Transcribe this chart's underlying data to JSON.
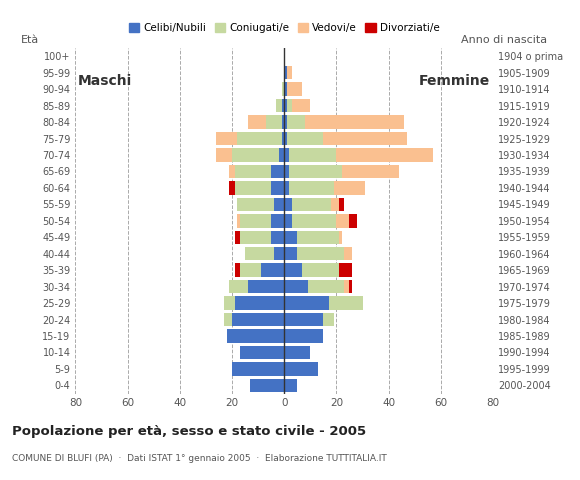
{
  "age_groups": [
    "0-4",
    "5-9",
    "10-14",
    "15-19",
    "20-24",
    "25-29",
    "30-34",
    "35-39",
    "40-44",
    "45-49",
    "50-54",
    "55-59",
    "60-64",
    "65-69",
    "70-74",
    "75-79",
    "80-84",
    "85-89",
    "90-94",
    "95-99",
    "100+"
  ],
  "birth_years": [
    "2000-2004",
    "1995-1999",
    "1990-1994",
    "1985-1989",
    "1980-1984",
    "1975-1979",
    "1970-1974",
    "1965-1969",
    "1960-1964",
    "1955-1959",
    "1950-1954",
    "1945-1949",
    "1940-1944",
    "1935-1939",
    "1930-1934",
    "1925-1929",
    "1920-1924",
    "1915-1919",
    "1910-1914",
    "1905-1909",
    "1904 o prima"
  ],
  "males": {
    "celibe": [
      13,
      20,
      17,
      22,
      20,
      19,
      14,
      9,
      4,
      5,
      5,
      4,
      5,
      5,
      2,
      1,
      1,
      1,
      0,
      0,
      0
    ],
    "coniugato": [
      0,
      0,
      0,
      0,
      3,
      4,
      7,
      8,
      11,
      12,
      12,
      14,
      14,
      14,
      18,
      17,
      6,
      2,
      1,
      0,
      0
    ],
    "vedovo": [
      0,
      0,
      0,
      0,
      0,
      0,
      0,
      0,
      0,
      0,
      1,
      0,
      0,
      2,
      6,
      8,
      7,
      0,
      0,
      0,
      0
    ],
    "divorziato": [
      0,
      0,
      0,
      0,
      0,
      0,
      0,
      2,
      0,
      2,
      0,
      0,
      2,
      0,
      0,
      0,
      0,
      0,
      0,
      0,
      0
    ]
  },
  "females": {
    "celibe": [
      5,
      13,
      10,
      15,
      15,
      17,
      9,
      7,
      5,
      5,
      3,
      3,
      2,
      2,
      2,
      1,
      1,
      1,
      1,
      1,
      0
    ],
    "coniugato": [
      0,
      0,
      0,
      0,
      4,
      13,
      14,
      14,
      18,
      16,
      17,
      15,
      17,
      20,
      18,
      14,
      7,
      2,
      0,
      0,
      0
    ],
    "vedovo": [
      0,
      0,
      0,
      0,
      0,
      0,
      2,
      0,
      3,
      1,
      5,
      3,
      12,
      22,
      37,
      32,
      38,
      7,
      6,
      2,
      0
    ],
    "divorziato": [
      0,
      0,
      0,
      0,
      0,
      0,
      1,
      5,
      0,
      0,
      3,
      2,
      0,
      0,
      0,
      0,
      0,
      0,
      0,
      0,
      0
    ]
  },
  "colors": {
    "celibe": "#4472C4",
    "coniugato": "#C6D9A0",
    "vedovo": "#FAC090",
    "divorziato": "#CC0000"
  },
  "legend_labels": [
    "Celibi/Nubili",
    "Coniugati/e",
    "Vedovi/e",
    "Divorziati/e"
  ],
  "title": "Popolazione per età, sesso e stato civile - 2005",
  "subtitle": "COMUNE DI BLUFI (PA)  ·  Dati ISTAT 1° gennaio 2005  ·  Elaborazione TUTTITALIA.IT",
  "xlabel_left": "Maschi",
  "xlabel_right": "Femmine",
  "ylabel_left": "Età",
  "ylabel_right": "Anno di nascita",
  "xlim": 80,
  "bg_color": "#FFFFFF",
  "grid_color": "#AAAAAA"
}
